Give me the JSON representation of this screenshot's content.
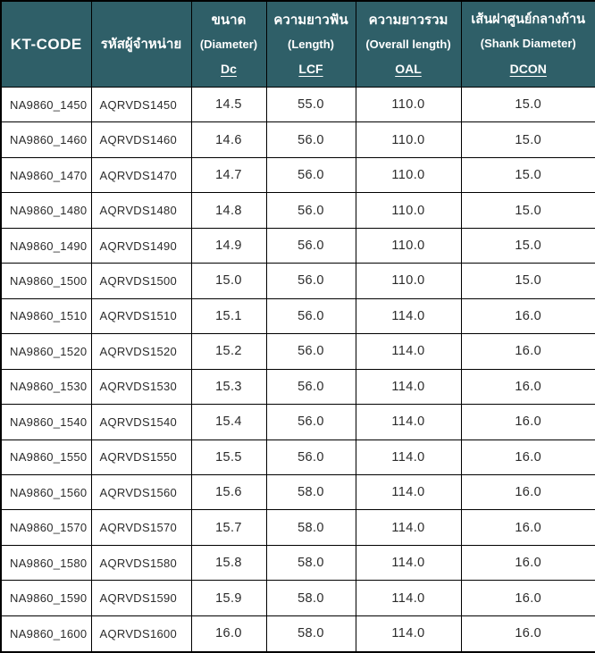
{
  "table": {
    "colors": {
      "header_bg": "#2f5f68",
      "header_text": "#ffffff",
      "border": "#000000",
      "body_text": "#2b2b2b",
      "row_bg": "#ffffff"
    },
    "columns": [
      {
        "id": "kt-code",
        "line1": "KT-CODE"
      },
      {
        "id": "vendor-code",
        "line1": "รหัสผู้จำหน่าย"
      },
      {
        "id": "diameter-dc",
        "line1": "ขนาด",
        "line2": "(Diameter)",
        "abbr": "Dc"
      },
      {
        "id": "length-lcf",
        "line1": "ความยาวฟัน",
        "line2": "(Length)",
        "abbr": "LCF"
      },
      {
        "id": "overall-length-oal",
        "line1": "ความยาวรวม",
        "line2": "(Overall length)",
        "abbr": "OAL"
      },
      {
        "id": "shank-diameter-dcon",
        "line1": "เส้นผ่าศูนย์กลางก้าน",
        "line2": "(Shank Diameter)",
        "abbr": "DCON"
      }
    ],
    "rows": [
      [
        "NA9860_1450",
        "AQRVDS1450",
        "14.5",
        "55.0",
        "110.0",
        "15.0"
      ],
      [
        "NA9860_1460",
        "AQRVDS1460",
        "14.6",
        "56.0",
        "110.0",
        "15.0"
      ],
      [
        "NA9860_1470",
        "AQRVDS1470",
        "14.7",
        "56.0",
        "110.0",
        "15.0"
      ],
      [
        "NA9860_1480",
        "AQRVDS1480",
        "14.8",
        "56.0",
        "110.0",
        "15.0"
      ],
      [
        "NA9860_1490",
        "AQRVDS1490",
        "14.9",
        "56.0",
        "110.0",
        "15.0"
      ],
      [
        "NA9860_1500",
        "AQRVDS1500",
        "15.0",
        "56.0",
        "110.0",
        "15.0"
      ],
      [
        "NA9860_1510",
        "AQRVDS1510",
        "15.1",
        "56.0",
        "114.0",
        "16.0"
      ],
      [
        "NA9860_1520",
        "AQRVDS1520",
        "15.2",
        "56.0",
        "114.0",
        "16.0"
      ],
      [
        "NA9860_1530",
        "AQRVDS1530",
        "15.3",
        "56.0",
        "114.0",
        "16.0"
      ],
      [
        "NA9860_1540",
        "AQRVDS1540",
        "15.4",
        "56.0",
        "114.0",
        "16.0"
      ],
      [
        "NA9860_1550",
        "AQRVDS1550",
        "15.5",
        "56.0",
        "114.0",
        "16.0"
      ],
      [
        "NA9860_1560",
        "AQRVDS1560",
        "15.6",
        "58.0",
        "114.0",
        "16.0"
      ],
      [
        "NA9860_1570",
        "AQRVDS1570",
        "15.7",
        "58.0",
        "114.0",
        "16.0"
      ],
      [
        "NA9860_1580",
        "AQRVDS1580",
        "15.8",
        "58.0",
        "114.0",
        "16.0"
      ],
      [
        "NA9860_1590",
        "AQRVDS1590",
        "15.9",
        "58.0",
        "114.0",
        "16.0"
      ],
      [
        "NA9860_1600",
        "AQRVDS1600",
        "16.0",
        "58.0",
        "114.0",
        "16.0"
      ]
    ]
  }
}
